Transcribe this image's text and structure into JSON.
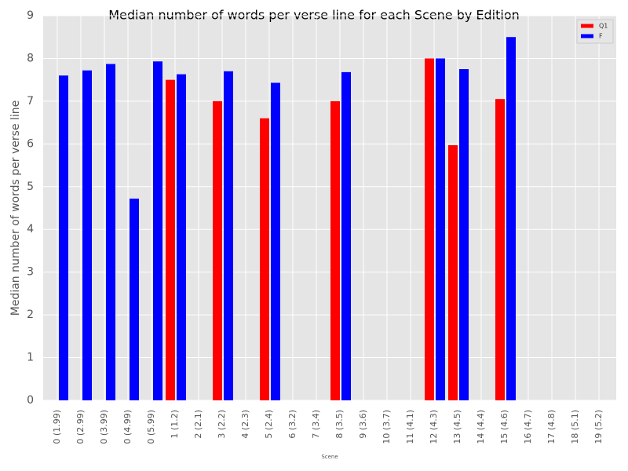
{
  "chart_data": {
    "type": "bar",
    "title": "Median number of words per verse line for each Scene by Edition",
    "x_label": "Scene",
    "y_label": "Median number of words per verse line",
    "categories": [
      "0 (1.99)",
      "0 (2.99)",
      "0 (3.99)",
      "0 (4.99)",
      "0 (5.99)",
      "1 (1.2)",
      "2 (2.1)",
      "3 (2.2)",
      "4 (2.3)",
      "5 (2.4)",
      "6 (3.2)",
      "7 (3.4)",
      "8 (3.5)",
      "9 (3.6)",
      "10 (3.7)",
      "11 (4.1)",
      "12 (4.3)",
      "13 (4.5)",
      "14 (4.4)",
      "15 (4.6)",
      "16 (4.7)",
      "17 (4.8)",
      "18 (5.1)",
      "19 (5.2)"
    ],
    "series": [
      {
        "name": "Q1",
        "color": "#ff0000",
        "values": [
          null,
          null,
          null,
          null,
          null,
          7.5,
          null,
          7.0,
          null,
          6.6,
          null,
          null,
          7.0,
          null,
          null,
          null,
          8.0,
          5.97,
          null,
          7.05,
          null,
          null,
          null,
          null
        ]
      },
      {
        "name": "F",
        "color": "#0000ff",
        "values": [
          7.6,
          7.72,
          7.87,
          4.72,
          7.93,
          7.63,
          null,
          7.7,
          null,
          7.43,
          null,
          null,
          7.68,
          null,
          null,
          null,
          8.0,
          7.75,
          null,
          8.5,
          null,
          null,
          null,
          null
        ]
      }
    ],
    "ylim": [
      0,
      9
    ],
    "yticks": [
      0,
      1,
      2,
      3,
      4,
      5,
      6,
      7,
      8,
      9
    ],
    "grid": true,
    "legend": "upper right"
  }
}
